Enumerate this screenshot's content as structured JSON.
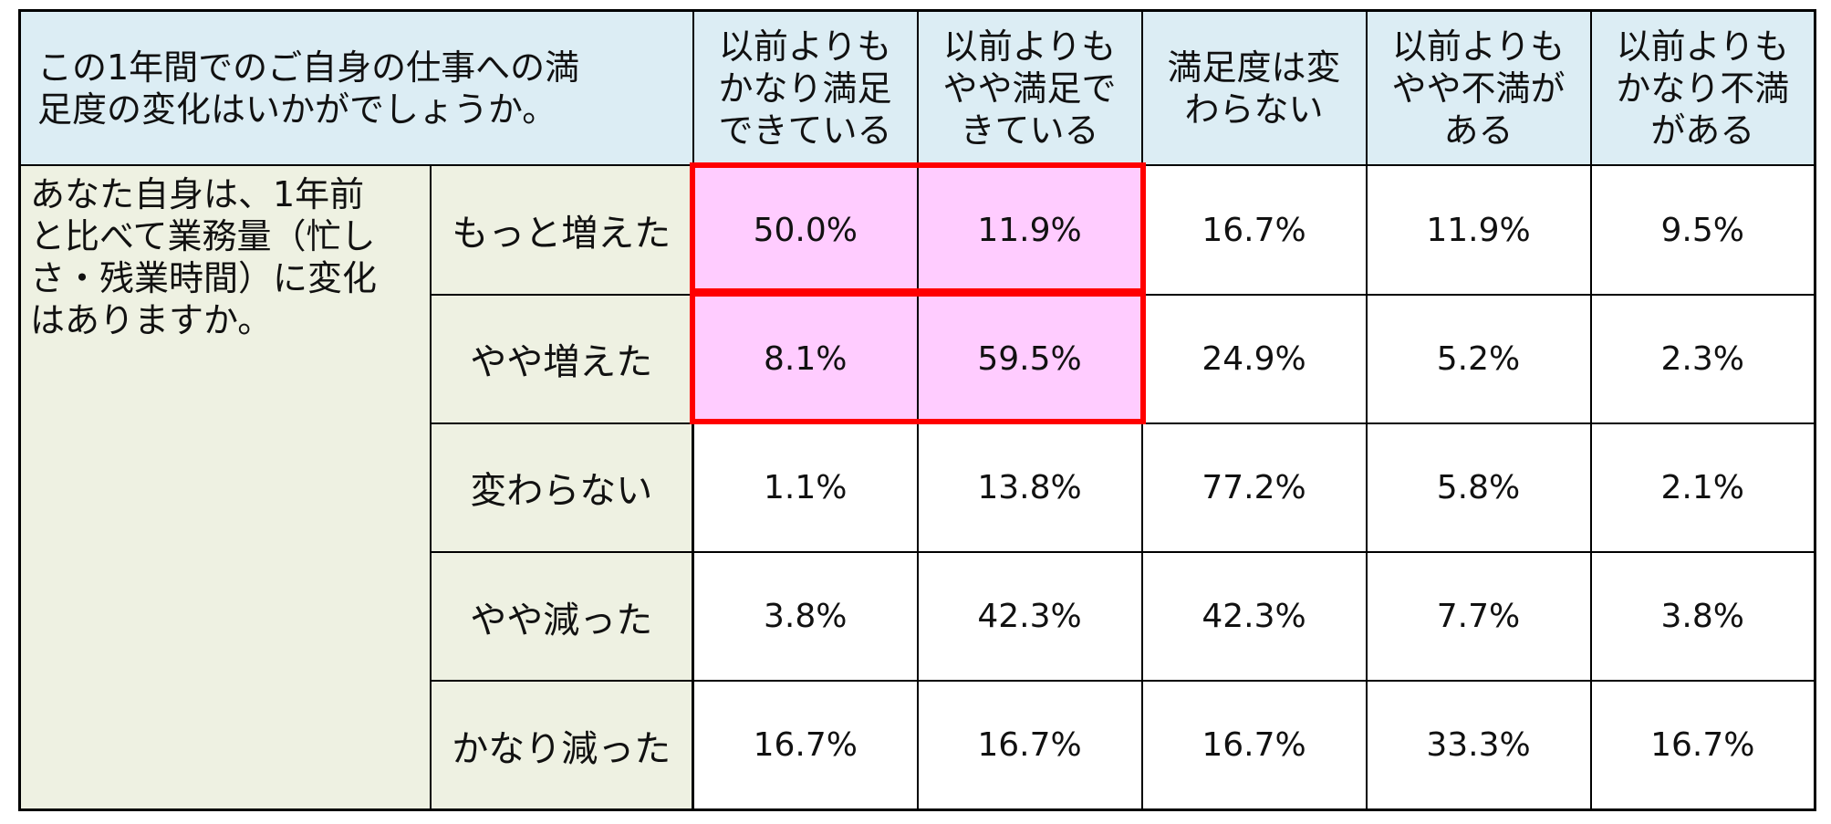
{
  "table": {
    "question_header": {
      "line1": "この1年間でのご自身の仕事への満",
      "line2": "足度の変化はいかがでしょうか。"
    },
    "column_headers": [
      {
        "lines": [
          "以前よりも",
          "かなり満足",
          "できている"
        ]
      },
      {
        "lines": [
          "以前よりも",
          "やや満足で",
          "きている"
        ]
      },
      {
        "lines": [
          "満足度は変",
          "わらない"
        ]
      },
      {
        "lines": [
          "以前よりも",
          "やや不満が",
          "ある"
        ]
      },
      {
        "lines": [
          "以前よりも",
          "かなり不満",
          "がある"
        ]
      }
    ],
    "row_question": {
      "line1": "あなた自身は、1年前",
      "line2": "と比べて業務量（忙し",
      "line3": "さ・残業時間）に変化",
      "line4": "はありますか。"
    },
    "rows": [
      {
        "label": "もっと増えた",
        "values": [
          "50.0%",
          "11.9%",
          "16.7%",
          "11.9%",
          "9.5%"
        ]
      },
      {
        "label": "やや増えた",
        "values": [
          "8.1%",
          "59.5%",
          "24.9%",
          "5.2%",
          "2.3%"
        ]
      },
      {
        "label": "変わらない",
        "values": [
          "1.1%",
          "13.8%",
          "77.2%",
          "5.8%",
          "2.1%"
        ]
      },
      {
        "label": "やや減った",
        "values": [
          "3.8%",
          "42.3%",
          "42.3%",
          "7.7%",
          "3.8%"
        ]
      },
      {
        "label": "かなり減った",
        "values": [
          "16.7%",
          "16.7%",
          "16.7%",
          "33.3%",
          "16.7%"
        ]
      }
    ]
  },
  "colors": {
    "header_bg": "#dcedf4",
    "row_label_bg": "#eef1e2",
    "highlight_fill": "#ffccff",
    "highlight_border": "#ff0000"
  }
}
